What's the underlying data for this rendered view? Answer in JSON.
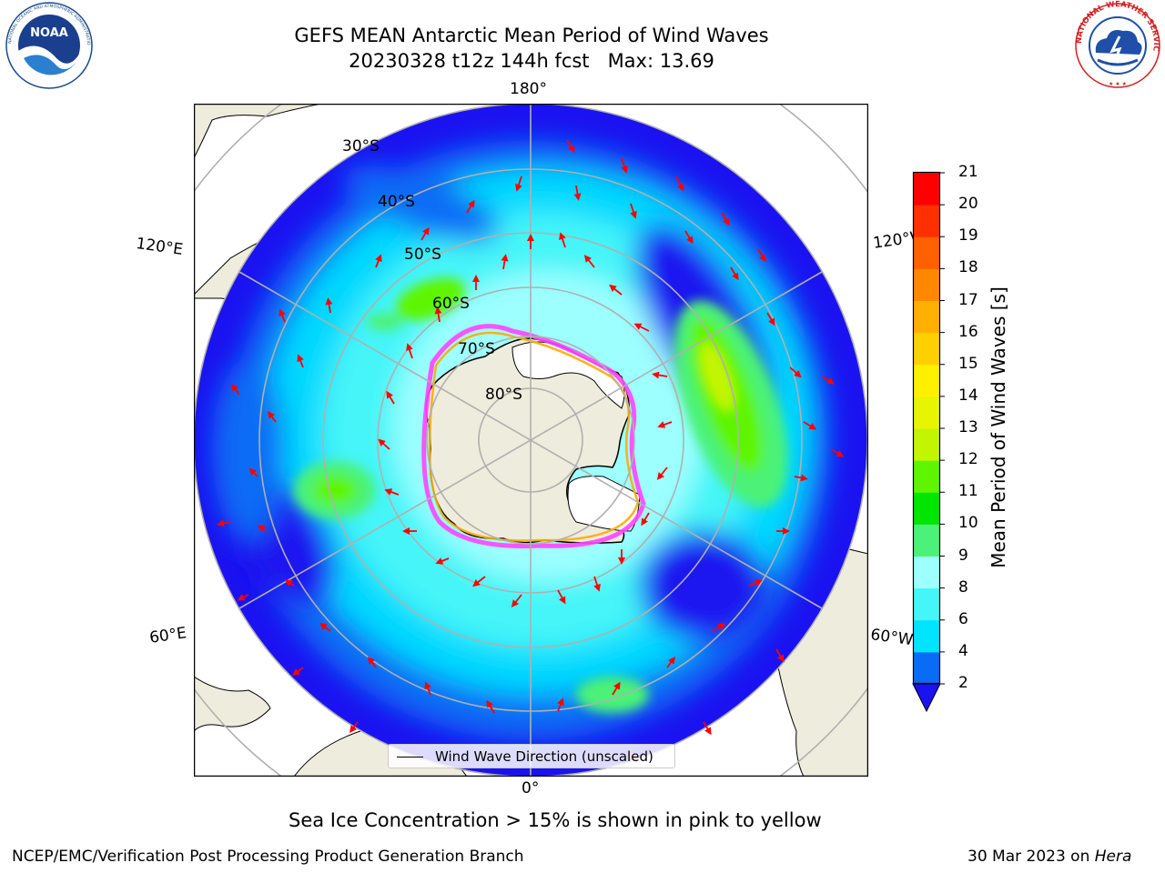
{
  "title": {
    "line1": "GEFS MEAN Antarctic Mean Period of Wind Waves",
    "line2": "20230328 t12z 144h fcst   Max: 13.69"
  },
  "logos": {
    "left": "NOAA",
    "left_ring_text": "NATIONAL OCEANIC AND ATMOSPHERIC ADMINISTRATION · U.S. DEPARTMENT OF COMMERCE",
    "right_ring_text": "NATIONAL WEATHER SERVICE"
  },
  "map": {
    "projection": "south-polar-stereographic",
    "lat_labels": [
      "30°S",
      "40°S",
      "50°S",
      "60°S",
      "70°S",
      "80°S"
    ],
    "lon_labels": {
      "top": "180°",
      "bottom": "0°",
      "upper_left": "120°E",
      "upper_right": "120°W",
      "lower_left": "60°E",
      "lower_right": "60°W"
    },
    "legend": "Wind Wave Direction (unscaled)",
    "colors": {
      "land": "#eeecdc",
      "ice": "#ffffff",
      "grid": "#b0b0b0",
      "arrow": "#ff0000",
      "ice_edge": [
        "#ff44ff",
        "#ffaa00"
      ]
    }
  },
  "colorbar": {
    "label": "Mean Period of Wind Waves [s]",
    "ticks": [
      "2",
      "4",
      "6",
      "8",
      "9",
      "10",
      "11",
      "12",
      "13",
      "14",
      "15",
      "16",
      "17",
      "18",
      "19",
      "20",
      "21"
    ],
    "colors": [
      "#0a6cf5",
      "#00e5ff",
      "#45f5f8",
      "#9effff",
      "#4cf277",
      "#00e600",
      "#5ff500",
      "#c4f500",
      "#e8f500",
      "#fff000",
      "#ffd000",
      "#ffb000",
      "#ff8800",
      "#ff6000",
      "#ff3000",
      "#ff0000"
    ],
    "under_color": "#1a12f0"
  },
  "note": "Sea Ice Concentration > 15% is shown in pink to yellow",
  "footer": {
    "left": "NCEP/EMC/Verification Post Processing Product Generation Branch",
    "right_date": "30 Mar 2023 on ",
    "right_machine": "Hera"
  }
}
